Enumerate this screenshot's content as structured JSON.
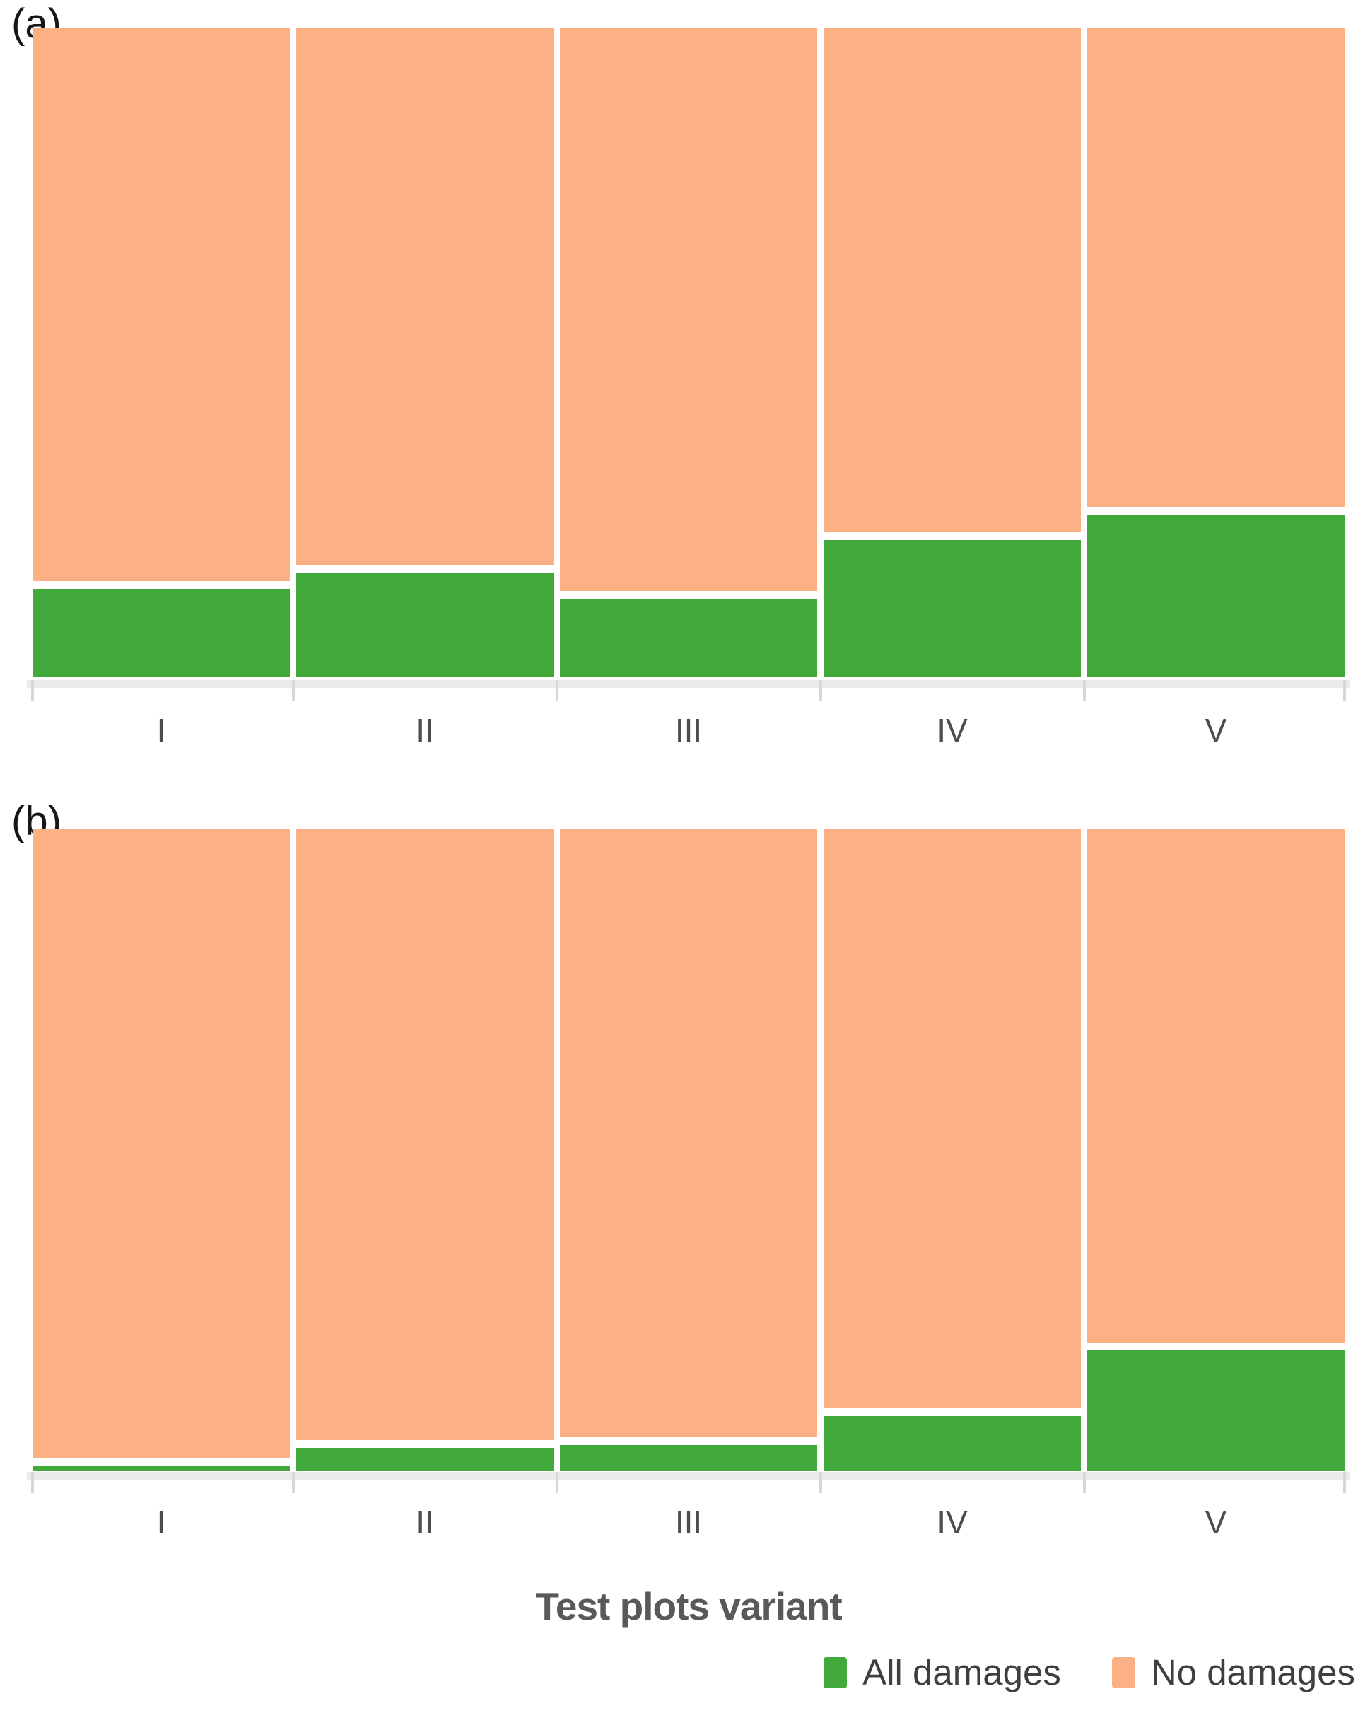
{
  "figure": {
    "x_axis_title": "Test plots variant",
    "panels": [
      {
        "id": "a",
        "label": "(a)"
      },
      {
        "id": "b",
        "label": "(b)"
      }
    ],
    "legend": [
      {
        "label": "All damages",
        "color": "#41A93C"
      },
      {
        "label": "No damages",
        "color": "#FBB183"
      }
    ]
  },
  "colors": {
    "all_damages_green": "#41A93C",
    "no_damages_orange": "#FBB183",
    "axis_gray": "#D9D9D9",
    "tick_label_gray": "#4D4D4D",
    "title_gray": "#595959",
    "background": "#FFFFFF"
  },
  "chart_data": [
    {
      "type": "bar",
      "subtype": "stacked-100-percent",
      "panel": "(a)",
      "categories": [
        "I",
        "II",
        "III",
        "IV",
        "V"
      ],
      "series": [
        {
          "name": "All damages",
          "color": "#41A93C",
          "values": [
            13.5,
            16.0,
            12.0,
            21.0,
            25.0
          ]
        },
        {
          "name": "No damages",
          "color": "#FBB183",
          "values": [
            86.5,
            84.0,
            88.0,
            79.0,
            75.0
          ]
        }
      ],
      "xlabel": "Test plots variant",
      "ylabel": "",
      "ylim": [
        0,
        100
      ],
      "unit": "%",
      "grid": false,
      "legend_position": "bottom-right"
    },
    {
      "type": "bar",
      "subtype": "stacked-100-percent",
      "panel": "(b)",
      "categories": [
        "I",
        "II",
        "III",
        "IV",
        "V"
      ],
      "series": [
        {
          "name": "All damages",
          "color": "#41A93C",
          "values": [
            0.8,
            3.5,
            4.0,
            8.5,
            18.7
          ]
        },
        {
          "name": "No damages",
          "color": "#FBB183",
          "values": [
            99.2,
            96.5,
            96.0,
            91.5,
            81.3
          ]
        }
      ],
      "xlabel": "Test plots variant",
      "ylabel": "",
      "ylim": [
        0,
        100
      ],
      "unit": "%",
      "grid": false,
      "legend_position": "bottom-right"
    }
  ]
}
